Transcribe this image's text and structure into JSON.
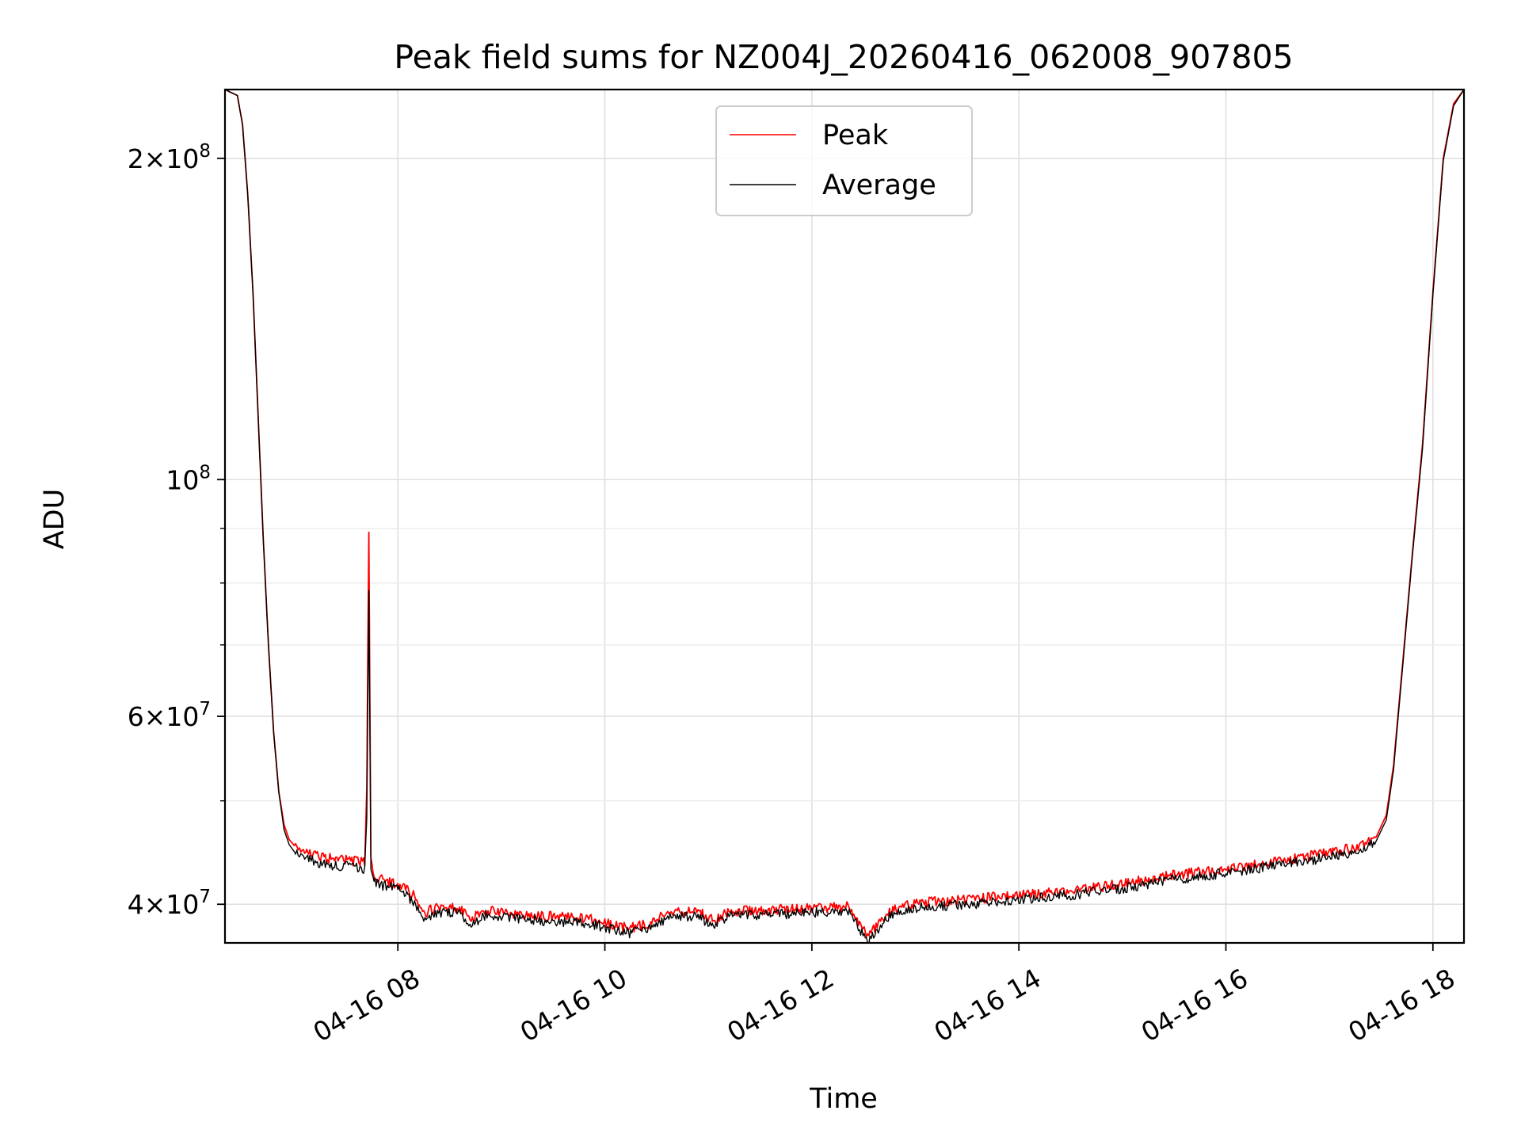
{
  "chart_data": {
    "type": "line",
    "title": "Peak field sums for NZ004J_20260416_062008_907805",
    "xlabel": "Time",
    "ylabel": "ADU",
    "yscale": "log",
    "grid": true,
    "legend_position": "top-center",
    "x_unit": "hours (2026-04-16)",
    "xlim": [
      6.33,
      18.3
    ],
    "ylim": [
      36800000,
      232000000
    ],
    "x_ticks": [
      {
        "value": 8,
        "label": "04-16 08"
      },
      {
        "value": 10,
        "label": "04-16 10"
      },
      {
        "value": 12,
        "label": "04-16 12"
      },
      {
        "value": 14,
        "label": "04-16 14"
      },
      {
        "value": 16,
        "label": "04-16 16"
      },
      {
        "value": 18,
        "label": "04-16 18"
      }
    ],
    "y_major_ticks": [
      {
        "value": 40000000,
        "mantissa": "4",
        "exponent": "7"
      },
      {
        "value": 60000000,
        "mantissa": "6",
        "exponent": "7"
      },
      {
        "value": 100000000,
        "mantissa": "",
        "exponent": "8"
      },
      {
        "value": 200000000,
        "mantissa": "2",
        "exponent": "8"
      }
    ],
    "y_minor_ticks": [
      50000000,
      70000000,
      80000000,
      90000000
    ],
    "series": [
      {
        "name": "Peak",
        "color": "#ff0000",
        "x": [
          6.33,
          6.45,
          6.5,
          6.55,
          6.6,
          6.65,
          6.7,
          6.75,
          6.8,
          6.85,
          6.9,
          6.95,
          7.0,
          7.05,
          7.1,
          7.15,
          7.2,
          7.3,
          7.5,
          7.68,
          7.7,
          7.72,
          7.74,
          7.76,
          7.8,
          8.0,
          8.15,
          8.25,
          8.35,
          8.55,
          8.72,
          8.85,
          9.0,
          9.3,
          9.6,
          9.9,
          10.1,
          10.25,
          10.4,
          10.55,
          10.7,
          10.9,
          11.05,
          11.2,
          11.5,
          11.8,
          12.0,
          12.35,
          12.45,
          12.55,
          12.62,
          12.75,
          12.9,
          13.0,
          13.5,
          14.0,
          14.5,
          15.0,
          15.5,
          16.0,
          16.5,
          17.0,
          17.3,
          17.45,
          17.55,
          17.62,
          17.7,
          17.8,
          17.9,
          18.0,
          18.1,
          18.2,
          18.3
        ],
        "y": [
          232000000,
          229000000,
          215000000,
          185000000,
          150000000,
          115000000,
          88000000,
          70000000,
          58000000,
          51000000,
          47500000,
          46000000,
          45400000,
          45000000,
          44800000,
          44600000,
          44500000,
          44200000,
          44000000,
          43800000,
          52000000,
          89000000,
          44000000,
          42500000,
          42300000,
          41800000,
          40800000,
          39300000,
          39600000,
          39800000,
          38800000,
          39500000,
          39300000,
          39100000,
          38900000,
          38700000,
          38200000,
          38000000,
          38300000,
          39000000,
          39400000,
          39300000,
          38700000,
          39400000,
          39500000,
          39600000,
          39700000,
          39800000,
          38500000,
          37200000,
          38200000,
          39300000,
          39900000,
          40100000,
          40400000,
          40800000,
          41200000,
          41800000,
          42600000,
          43200000,
          43900000,
          44700000,
          45300000,
          46200000,
          48500000,
          54000000,
          66000000,
          85000000,
          108000000,
          150000000,
          200000000,
          225000000,
          232000000
        ]
      },
      {
        "name": "Average",
        "color": "#000000",
        "x": [
          6.33,
          6.45,
          6.5,
          6.55,
          6.6,
          6.65,
          6.7,
          6.75,
          6.8,
          6.85,
          6.9,
          6.95,
          7.0,
          7.05,
          7.1,
          7.15,
          7.2,
          7.3,
          7.5,
          7.68,
          7.7,
          7.72,
          7.74,
          7.76,
          7.8,
          8.0,
          8.15,
          8.25,
          8.35,
          8.55,
          8.72,
          8.85,
          9.0,
          9.3,
          9.6,
          9.9,
          10.1,
          10.25,
          10.4,
          10.55,
          10.7,
          10.9,
          11.05,
          11.2,
          11.5,
          11.8,
          12.0,
          12.35,
          12.45,
          12.55,
          12.62,
          12.75,
          12.9,
          13.0,
          13.5,
          14.0,
          14.5,
          15.0,
          15.5,
          16.0,
          16.5,
          17.0,
          17.3,
          17.45,
          17.55,
          17.62,
          17.7,
          17.8,
          17.9,
          18.0,
          18.1,
          18.2,
          18.3
        ],
        "y": [
          232000000,
          229000000,
          215000000,
          185000000,
          150000000,
          115000000,
          88000000,
          70000000,
          58000000,
          51000000,
          47000000,
          45500000,
          44800000,
          44400000,
          44200000,
          44000000,
          43900000,
          43600000,
          43400000,
          43200000,
          48000000,
          79000000,
          43000000,
          42000000,
          41800000,
          41300000,
          40300000,
          38900000,
          39200000,
          39400000,
          38400000,
          39100000,
          38900000,
          38700000,
          38500000,
          38300000,
          37800000,
          37600000,
          37900000,
          38600000,
          39000000,
          38900000,
          38300000,
          39000000,
          39100000,
          39200000,
          39300000,
          39400000,
          38100000,
          36900000,
          37800000,
          38900000,
          39500000,
          39700000,
          40000000,
          40400000,
          40800000,
          41400000,
          42200000,
          42800000,
          43500000,
          44300000,
          44900000,
          45800000,
          48000000,
          53500000,
          65500000,
          84500000,
          107000000,
          149000000,
          199000000,
          224000000,
          232000000
        ]
      }
    ]
  }
}
